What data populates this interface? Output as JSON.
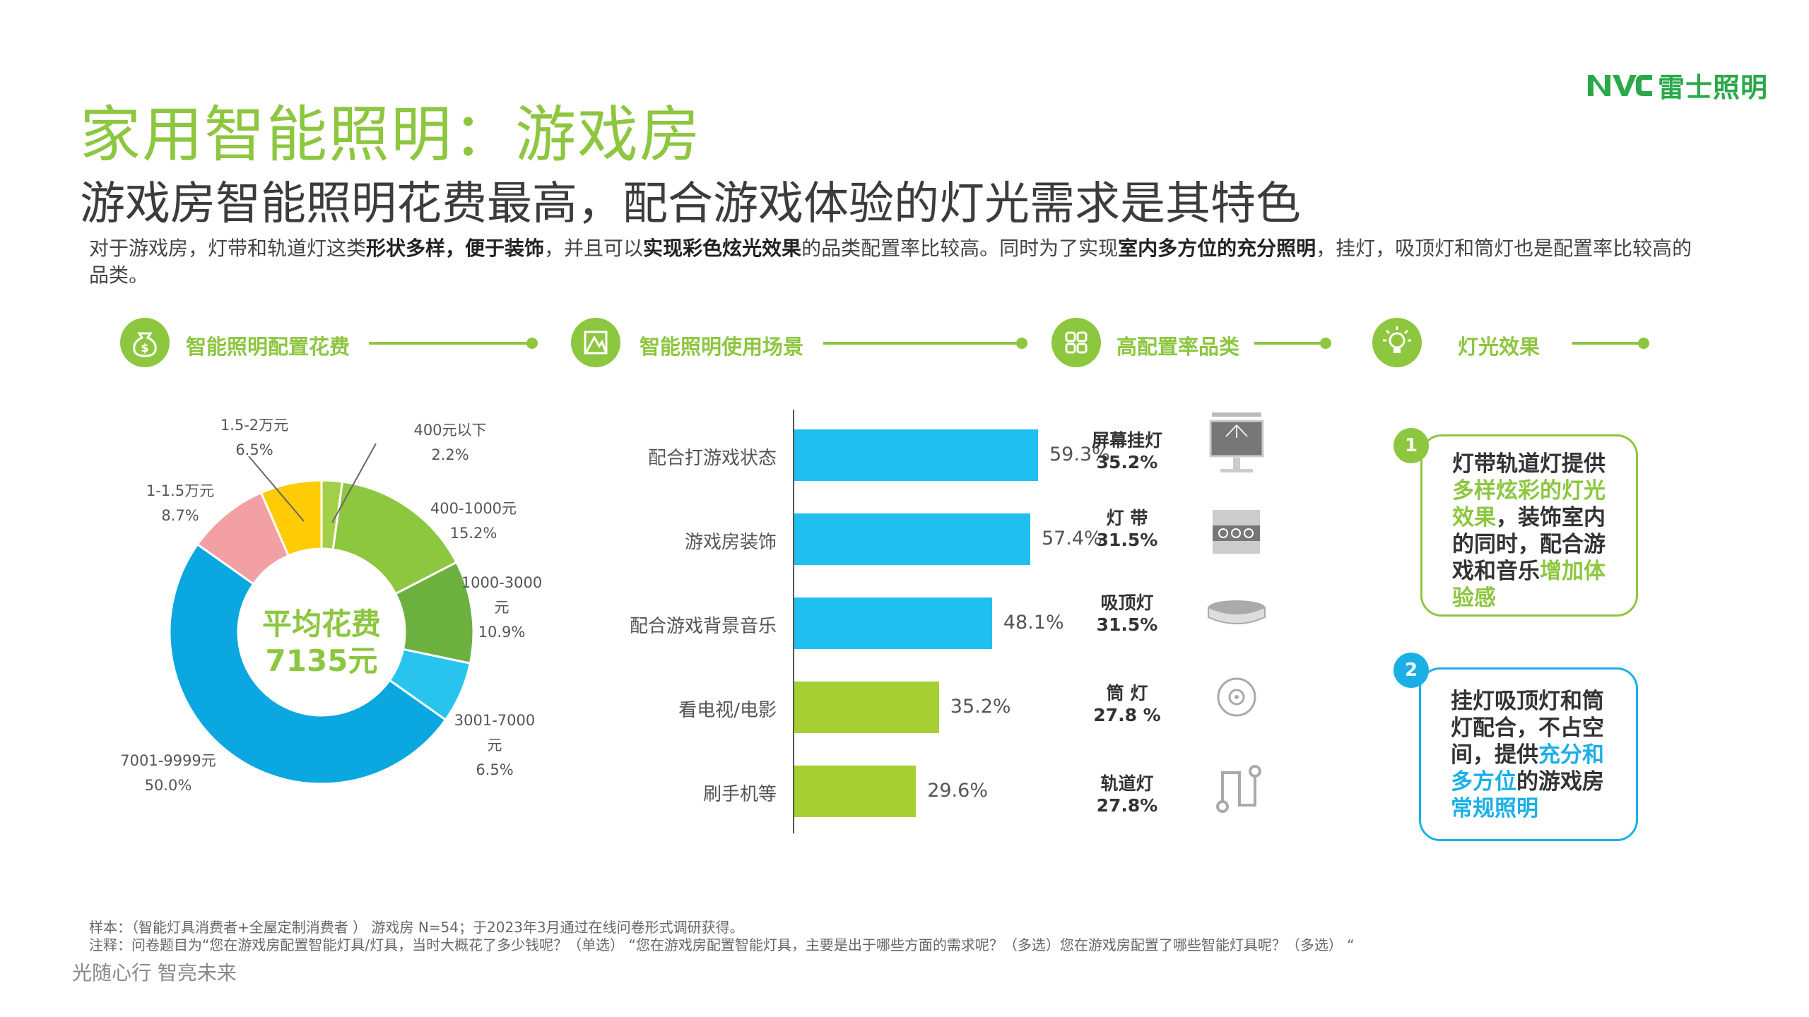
{
  "brand": {
    "logo_text": "NVC",
    "name": "雷士照明"
  },
  "title": "家用智能照明：游戏房",
  "subtitle": "游戏房智能照明花费最高，配合游戏体验的灯光需求是其特色",
  "intro": {
    "p1": "对于游戏房，灯带和轨道灯这类",
    "b1": "形状多样，便于装饰",
    "p2": "，并且可以",
    "b2": "实现彩色炫光效果",
    "p3": "的品类配置率比较高。同时为了实现",
    "b3": "室内多方位的充分照明",
    "p4": "，挂灯，吸顶灯和筒灯也是配置率比较高的品类。"
  },
  "sections": [
    {
      "label": "智能照明配置花费",
      "icon": "money-bag-icon"
    },
    {
      "label": "智能照明使用场景",
      "icon": "scene-icon"
    },
    {
      "label": "高配置率品类",
      "icon": "grid-icon"
    },
    {
      "label": "灯光效果",
      "icon": "bulb-icon"
    }
  ],
  "donut_center": {
    "line1": "平均花费",
    "line2": "7135元"
  },
  "chart_data": [
    {
      "type": "pie",
      "title": "智能照明配置花费",
      "slices": [
        {
          "label": "400元以下",
          "value": 2.2,
          "display": "2.2%",
          "color": "#a4cf4a"
        },
        {
          "label": "400-1000元",
          "value": 15.2,
          "display": "15.2%",
          "color": "#8dc63f"
        },
        {
          "label": "1000-3000元",
          "value": 10.9,
          "display": "10.9%",
          "color": "#6cb13f"
        },
        {
          "label": "3001-7000元",
          "value": 6.5,
          "display": "6.5%",
          "color": "#29c4ee"
        },
        {
          "label": "7001-9999元",
          "value": 50.0,
          "display": "50.0%",
          "color": "#0aa7e0"
        },
        {
          "label": "1-1.5万元",
          "value": 8.7,
          "display": "8.7%",
          "color": "#f2a0a3"
        },
        {
          "label": "1.5-2万元",
          "value": 6.5,
          "display": "6.5%",
          "color": "#ffcb05"
        }
      ],
      "labels": {
        "s0": {
          "a": "400元以下",
          "b": "2.2%"
        },
        "s1": {
          "a": "400-1000元",
          "b": "15.2%"
        },
        "s2": {
          "a": "1000-3000",
          "b": "元",
          "c": "10.9%"
        },
        "s3": {
          "a": "3001-7000",
          "b": "元",
          "c": "6.5%"
        },
        "s4": {
          "a": "7001-9999元",
          "b": "50.0%"
        },
        "s5": {
          "a": "1-1.5万元",
          "b": "8.7%"
        },
        "s6": {
          "a": "1.5-2万元",
          "b": "6.5%"
        }
      }
    },
    {
      "type": "bar",
      "orientation": "horizontal",
      "title": "智能照明使用场景",
      "categories": [
        "配合打游戏状态",
        "游戏房装饰",
        "配合游戏背景音乐",
        "看电视/电影",
        "刷手机等"
      ],
      "values": [
        59.3,
        57.4,
        48.1,
        35.2,
        29.6
      ],
      "value_labels": [
        "59.3%",
        "57.4%",
        "48.1%",
        "35.2%",
        "29.6%"
      ],
      "colors": [
        "#1fc0f0",
        "#1fc0f0",
        "#1fc0f0",
        "#a6cf33",
        "#a6cf33"
      ],
      "xlim": [
        0,
        100
      ]
    }
  ],
  "categories": [
    {
      "name": "屏幕挂灯",
      "pct": "35.2%",
      "icon": "monitor-light-icon"
    },
    {
      "name": "灯 带",
      "pct": "31.5%",
      "icon": "light-strip-icon"
    },
    {
      "name": "吸顶灯",
      "pct": "31.5%",
      "icon": "ceiling-light-icon"
    },
    {
      "name": "筒 灯",
      "pct": "27.8 %",
      "icon": "downlight-icon"
    },
    {
      "name": "轨道灯",
      "pct": "27.8%",
      "icon": "track-light-icon"
    }
  ],
  "effects": {
    "card1": {
      "num": "1",
      "t1": "灯带轨道灯提供",
      "h1": "多样炫彩的灯光效果",
      "t2": "，装饰室内的同时，配合游戏和音乐",
      "h2": "增加体验感"
    },
    "card2": {
      "num": "2",
      "t1": "挂灯吸顶灯和筒灯配合，不占空间，提供",
      "h1": "充分和多方位",
      "t2": "的游戏房",
      "h2": "常规照明"
    }
  },
  "colors": {
    "green": "#8dc63f",
    "blue": "#1ab0e6"
  },
  "footer": {
    "sample": "样本：（智能灯具消费者+全屋定制消费者 ）  游戏房 N=54；于2023年3月通过在线问卷形式调研获得。",
    "note": "注释：问卷题目为“您在游戏房配置智能灯具/灯具，当时大概花了多少钱呢？（单选）  “您在游戏房配置智能灯具，主要是出于哪些方面的需求呢？（多选）您在游戏房配置了哪些智能灯具呢？（多选）  “",
    "slogan": "光随心行   智亮未来"
  }
}
